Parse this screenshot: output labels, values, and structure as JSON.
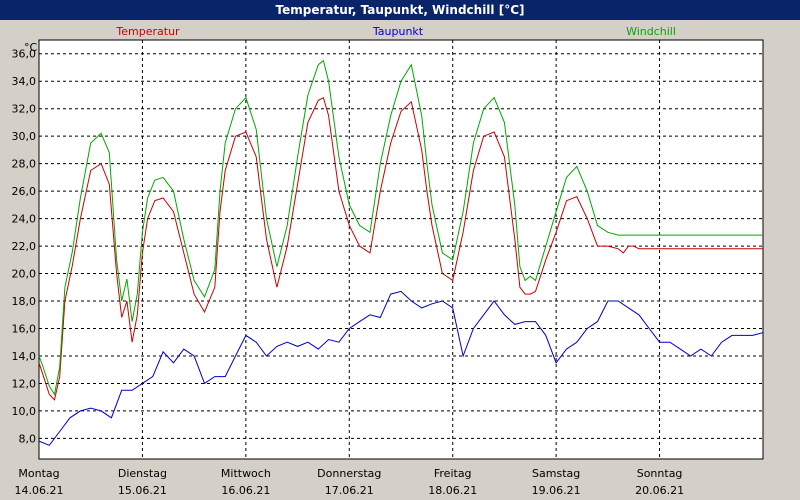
{
  "window": {
    "title": "Temperatur, Taupunkt, Windchill [°C]"
  },
  "chart_data": {
    "type": "line",
    "title": "Temperatur, Taupunkt, Windchill [°C]",
    "yunit": "°C",
    "ylim": [
      6.5,
      37
    ],
    "yticks": [
      "8,0",
      "10,0",
      "12,0",
      "14,0",
      "16,0",
      "18,0",
      "20,0",
      "22,0",
      "24,0",
      "26,0",
      "28,0",
      "30,0",
      "32,0",
      "34,0",
      "36,0"
    ],
    "ytick_values": [
      8,
      10,
      12,
      14,
      16,
      18,
      20,
      22,
      24,
      26,
      28,
      30,
      32,
      34,
      36
    ],
    "xlim": [
      0,
      7
    ],
    "grid": true,
    "days": [
      {
        "weekday": "Montag",
        "date": "14.06.21"
      },
      {
        "weekday": "Dienstag",
        "date": "15.06.21"
      },
      {
        "weekday": "Mittwoch",
        "date": "16.06.21"
      },
      {
        "weekday": "Donnerstag",
        "date": "17.06.21"
      },
      {
        "weekday": "Freitag",
        "date": "18.06.21"
      },
      {
        "weekday": "Samstag",
        "date": "19.06.21"
      },
      {
        "weekday": "Sonntag",
        "date": "20.06.21"
      }
    ],
    "legend_placement": "top",
    "series": [
      {
        "name": "Temperatur",
        "color": "#cc0000",
        "x": [
          0,
          0.04,
          0.1,
          0.15,
          0.2,
          0.25,
          0.32,
          0.4,
          0.5,
          0.6,
          0.68,
          0.75,
          0.8,
          0.85,
          0.9,
          0.95,
          1.0,
          1.05,
          1.12,
          1.2,
          1.3,
          1.4,
          1.5,
          1.6,
          1.7,
          1.75,
          1.8,
          1.9,
          2.0,
          2.1,
          2.2,
          2.3,
          2.4,
          2.5,
          2.6,
          2.7,
          2.75,
          2.8,
          2.9,
          3.0,
          3.1,
          3.2,
          3.3,
          3.4,
          3.5,
          3.6,
          3.7,
          3.75,
          3.8,
          3.9,
          4.0,
          4.1,
          4.2,
          4.3,
          4.4,
          4.5,
          4.6,
          4.65,
          4.7,
          4.75,
          4.8,
          4.9,
          5.0,
          5.1,
          5.2,
          5.3,
          5.4,
          5.5,
          5.6,
          5.65,
          5.7,
          5.75,
          5.8,
          5.9,
          6.0,
          6.1,
          6.2,
          6.3,
          6.4,
          6.5,
          6.6,
          6.7,
          6.8,
          6.9,
          6.95,
          7.0
        ],
        "y": [
          13.5,
          12.6,
          11.2,
          10.8,
          12.5,
          18.0,
          20.5,
          24.0,
          27.5,
          28.0,
          26.5,
          20.0,
          16.8,
          18.0,
          15.0,
          17.0,
          21.5,
          24.0,
          25.3,
          25.5,
          24.5,
          21.5,
          18.5,
          17.2,
          19.0,
          24.5,
          27.5,
          30.0,
          30.3,
          28.5,
          22.5,
          19.0,
          22.0,
          26.5,
          31.0,
          32.6,
          32.8,
          31.5,
          26.0,
          23.5,
          22.0,
          21.5,
          26.0,
          29.5,
          31.8,
          32.5,
          29.0,
          26.0,
          23.5,
          20.0,
          19.5,
          23.0,
          27.5,
          30.0,
          30.3,
          28.5,
          22.5,
          19.0,
          18.5,
          18.5,
          18.7,
          21.0,
          23.0,
          25.3,
          25.6,
          24.0,
          22.0,
          22.0,
          21.8,
          21.5,
          22.0,
          22.0,
          21.8,
          21.8,
          21.8,
          21.8,
          21.8,
          21.8,
          21.8,
          21.8,
          21.8,
          21.8,
          21.8,
          21.8,
          21.8,
          21.8
        ]
      },
      {
        "name": "Taupunkt",
        "color": "#0000cc",
        "x": [
          0,
          0.1,
          0.2,
          0.3,
          0.4,
          0.5,
          0.6,
          0.7,
          0.8,
          0.9,
          1.0,
          1.1,
          1.2,
          1.3,
          1.4,
          1.5,
          1.6,
          1.7,
          1.8,
          1.9,
          2.0,
          2.1,
          2.2,
          2.3,
          2.4,
          2.5,
          2.6,
          2.7,
          2.8,
          2.9,
          3.0,
          3.1,
          3.2,
          3.3,
          3.4,
          3.5,
          3.6,
          3.7,
          3.8,
          3.9,
          4.0,
          4.1,
          4.2,
          4.3,
          4.4,
          4.5,
          4.6,
          4.7,
          4.8,
          4.9,
          5.0,
          5.1,
          5.2,
          5.3,
          5.4,
          5.5,
          5.6,
          5.7,
          5.8,
          5.9,
          6.0,
          6.1,
          6.2,
          6.3,
          6.4,
          6.5,
          6.6,
          6.7,
          6.8,
          6.9,
          7.0
        ],
        "y": [
          7.8,
          7.5,
          8.5,
          9.5,
          10.0,
          10.2,
          10.0,
          9.5,
          11.5,
          11.5,
          12.0,
          12.5,
          14.3,
          13.5,
          14.5,
          14.0,
          12.0,
          12.5,
          12.5,
          14.0,
          15.5,
          15.0,
          14.0,
          14.7,
          15.0,
          14.7,
          15.0,
          14.5,
          15.2,
          15.0,
          16.0,
          16.5,
          17.0,
          16.8,
          18.5,
          18.7,
          18.0,
          17.5,
          17.8,
          18.0,
          17.5,
          14.0,
          16.0,
          17.0,
          18.0,
          17.0,
          16.3,
          16.5,
          16.5,
          15.5,
          13.5,
          14.5,
          15.0,
          16.0,
          16.5,
          18.0,
          18.0,
          17.5,
          17.0,
          16.0,
          15.0,
          15.0,
          14.5,
          14.0,
          14.5,
          14.0,
          15.0,
          15.5,
          15.5,
          15.5,
          15.7
        ]
      },
      {
        "name": "Windchill",
        "color": "#00aa00",
        "x": [
          0,
          0.04,
          0.1,
          0.15,
          0.2,
          0.25,
          0.32,
          0.4,
          0.5,
          0.6,
          0.68,
          0.75,
          0.8,
          0.85,
          0.9,
          0.95,
          1.0,
          1.05,
          1.12,
          1.2,
          1.3,
          1.4,
          1.5,
          1.6,
          1.7,
          1.75,
          1.8,
          1.9,
          2.0,
          2.1,
          2.2,
          2.3,
          2.4,
          2.5,
          2.6,
          2.7,
          2.75,
          2.8,
          2.9,
          3.0,
          3.1,
          3.2,
          3.3,
          3.4,
          3.5,
          3.6,
          3.7,
          3.75,
          3.8,
          3.9,
          4.0,
          4.1,
          4.2,
          4.3,
          4.4,
          4.5,
          4.6,
          4.65,
          4.7,
          4.75,
          4.8,
          4.9,
          5.0,
          5.1,
          5.2,
          5.3,
          5.4,
          5.5,
          5.6,
          5.65,
          5.7,
          5.75,
          5.8,
          5.9,
          6.0,
          6.1,
          6.2,
          6.3,
          6.4,
          6.5,
          6.6,
          6.7,
          6.8,
          6.9,
          6.95,
          7.0
        ],
        "y": [
          14.0,
          13.2,
          11.8,
          11.2,
          13.2,
          19.0,
          21.5,
          25.5,
          29.5,
          30.2,
          28.8,
          21.0,
          18.0,
          19.6,
          16.5,
          18.5,
          23.0,
          25.5,
          26.8,
          27.0,
          26.0,
          22.5,
          19.5,
          18.3,
          20.3,
          26.0,
          29.5,
          32.0,
          32.8,
          30.5,
          24.0,
          20.5,
          23.5,
          28.5,
          33.0,
          35.2,
          35.5,
          34.0,
          28.5,
          25.0,
          23.5,
          23.0,
          28.0,
          31.5,
          34.0,
          35.2,
          31.5,
          28.0,
          25.0,
          21.5,
          21.0,
          24.5,
          29.5,
          32.0,
          32.8,
          31.0,
          25.0,
          20.5,
          19.5,
          19.8,
          19.5,
          22.0,
          24.5,
          27.0,
          27.8,
          26.0,
          23.5,
          23.0,
          22.8,
          22.8,
          22.8,
          22.8,
          22.8,
          22.8,
          22.8,
          22.8,
          22.8,
          22.8,
          22.8,
          22.8,
          22.8,
          22.8,
          22.8,
          22.8,
          22.8,
          22.8
        ]
      }
    ]
  }
}
